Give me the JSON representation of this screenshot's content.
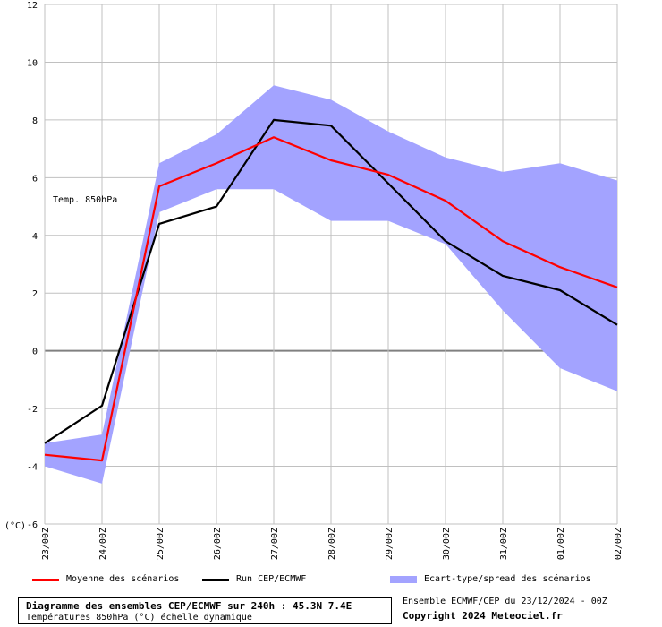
{
  "chart_data": {
    "type": "line",
    "panel_label": "Temp. 850hPa",
    "y_unit_label": "(°C)",
    "ylim": [
      -6,
      12
    ],
    "y_ticks": [
      -6,
      -4,
      -2,
      0,
      2,
      4,
      6,
      8,
      10,
      12
    ],
    "grid": true,
    "categories": [
      "23/00Z",
      "24/00Z",
      "25/00Z",
      "26/00Z",
      "27/00Z",
      "28/00Z",
      "29/00Z",
      "30/00Z",
      "31/00Z",
      "01/00Z",
      "02/00Z"
    ],
    "series": [
      {
        "name": "Moyenne des scénarios",
        "color": "#ff0000",
        "values": [
          -3.6,
          -3.8,
          5.7,
          6.5,
          7.4,
          6.6,
          6.1,
          5.2,
          3.8,
          2.9,
          2.2
        ]
      },
      {
        "name": "Run CEP/ECMWF",
        "color": "#000000",
        "values": [
          -3.2,
          -1.9,
          4.4,
          5.0,
          8.0,
          7.8,
          5.8,
          3.8,
          2.6,
          2.1,
          0.9
        ]
      }
    ],
    "spread": {
      "name": "Ecart-type/spread des scénarios",
      "color": "#a3a3ff",
      "upper": [
        -3.2,
        -2.9,
        6.5,
        7.5,
        9.2,
        8.7,
        7.6,
        6.7,
        6.2,
        6.5,
        5.9
      ],
      "lower": [
        -4.0,
        -4.6,
        4.8,
        5.6,
        5.6,
        4.5,
        4.5,
        3.7,
        1.4,
        -0.6,
        -1.4
      ]
    }
  },
  "footer": {
    "title": "Diagramme des ensembles CEP/ECMWF sur 240h : 45.3N 7.4E",
    "subtitle": "Températures 850hPa (°C) échelle dynamique",
    "run_info": "Ensemble ECMWF/CEP du 23/12/2024 - 00Z",
    "copyright": "Copyright 2024 Meteociel.fr"
  }
}
